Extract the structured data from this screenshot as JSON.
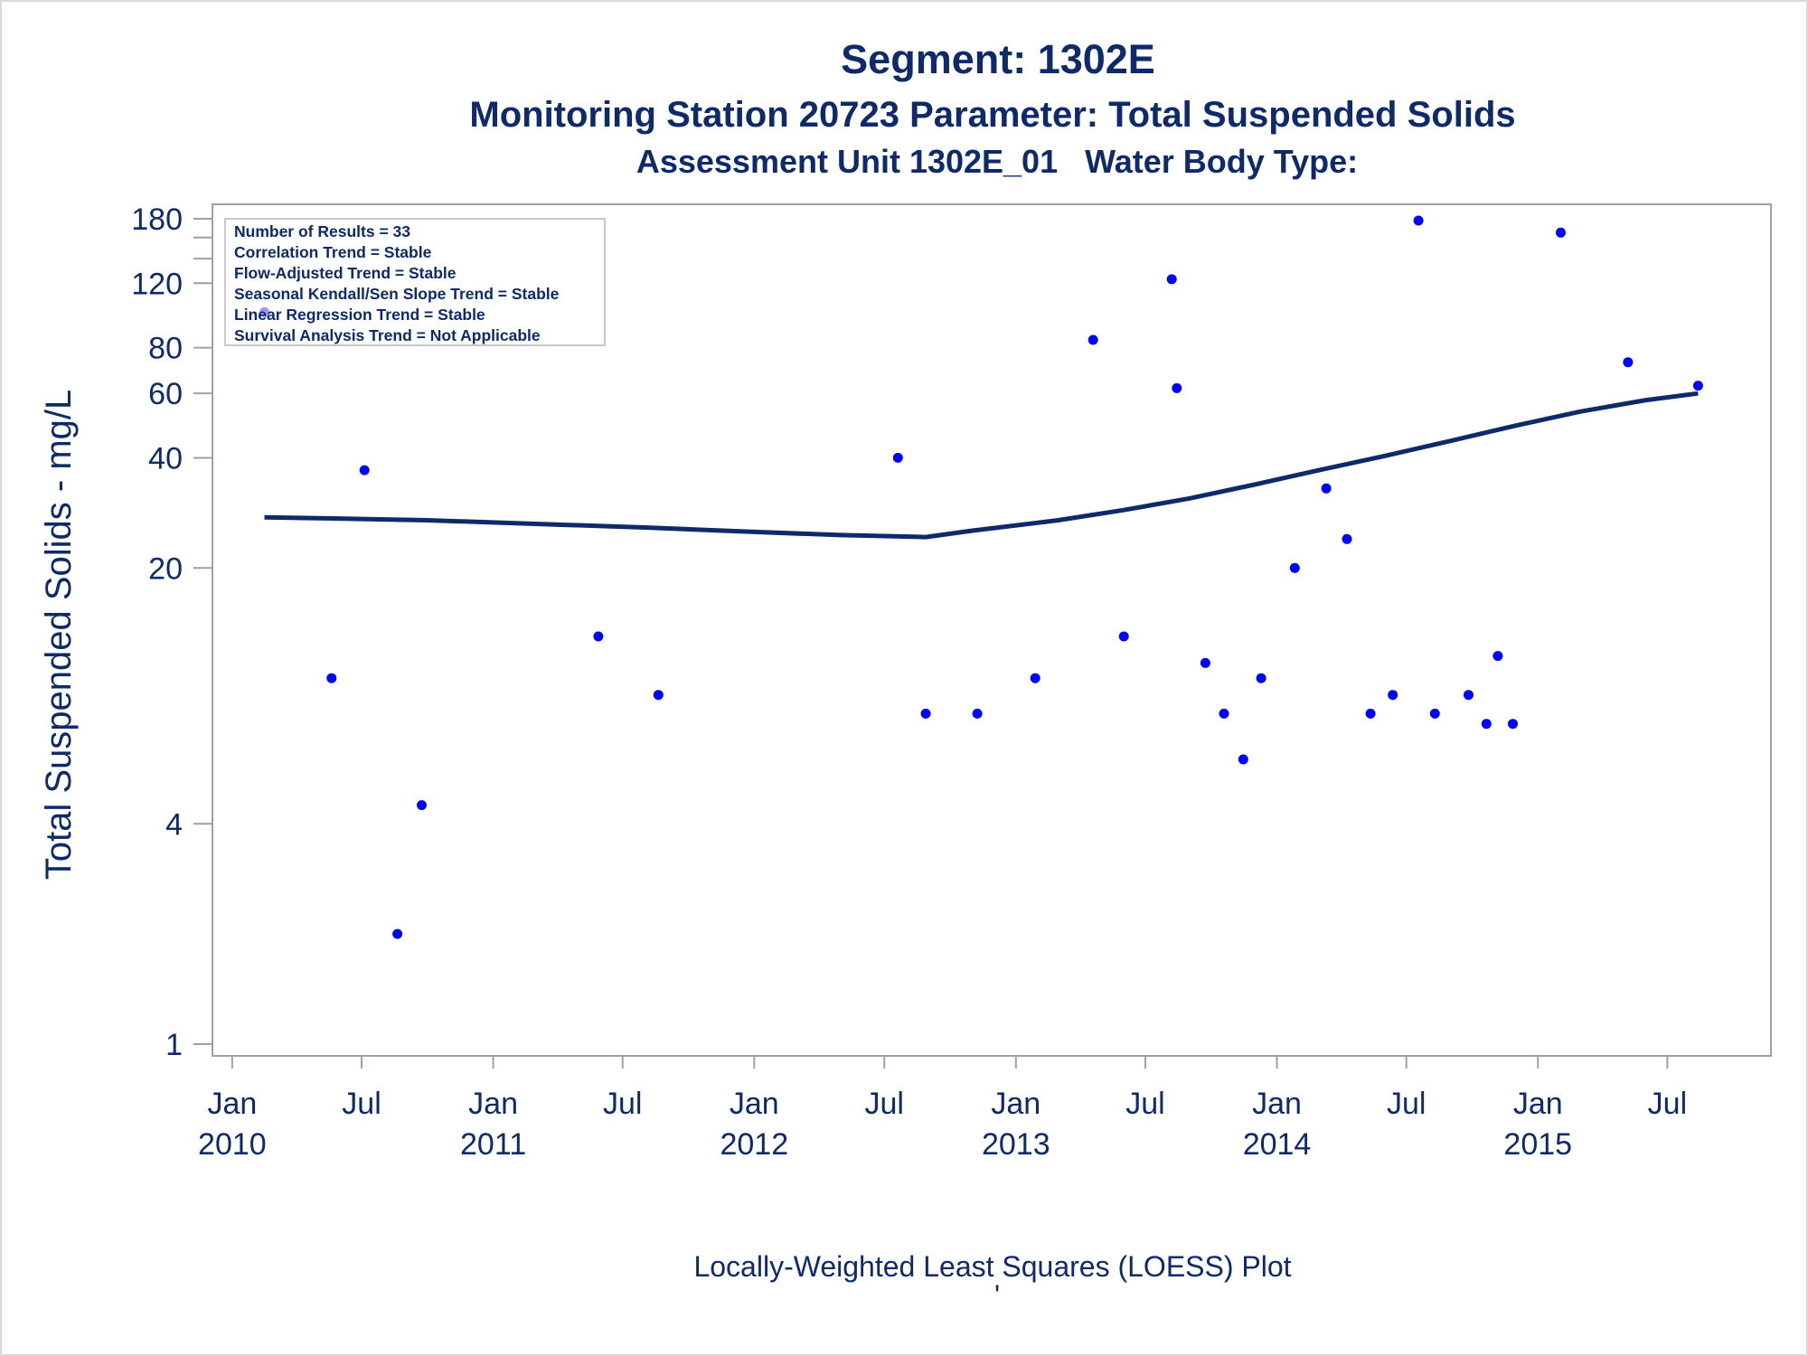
{
  "chart_data": {
    "type": "scatter",
    "title": "Segment: 1302E",
    "subtitle": "Monitoring Station 20723 Parameter: Total Suspended Solids",
    "subtitle2": "Assessment Unit 1302E_01   Water Body Type:",
    "ylabel": "Total Suspended Solids - mg/L",
    "footnote": "Locally-Weighted Least Squares (LOESS) Plot",
    "footnote_mark": "'",
    "y_scale": "log",
    "ylim": [
      1,
      180
    ],
    "y_ticks": [
      {
        "value": 1,
        "label": "1"
      },
      {
        "value": 4,
        "label": "4"
      },
      {
        "value": 20,
        "label": "20"
      },
      {
        "value": 40,
        "label": "40"
      },
      {
        "value": 60,
        "label": "60"
      },
      {
        "value": 80,
        "label": "80"
      },
      {
        "value": 120,
        "label": "120"
      },
      {
        "value": 180,
        "label": "180"
      }
    ],
    "y_minor_ticks": [
      140,
      160
    ],
    "xlim": [
      "2009-12-17",
      "2015-08-15"
    ],
    "x_ticks": [
      {
        "date": "2010-01-01",
        "label": "Jan",
        "year": "2010"
      },
      {
        "date": "2010-07-01",
        "label": "Jul",
        "year": ""
      },
      {
        "date": "2011-01-01",
        "label": "Jan",
        "year": "2011"
      },
      {
        "date": "2011-07-01",
        "label": "Jul",
        "year": ""
      },
      {
        "date": "2012-01-01",
        "label": "Jan",
        "year": "2012"
      },
      {
        "date": "2012-07-01",
        "label": "Jul",
        "year": ""
      },
      {
        "date": "2013-01-01",
        "label": "Jan",
        "year": "2013"
      },
      {
        "date": "2013-07-01",
        "label": "Jul",
        "year": ""
      },
      {
        "date": "2014-01-01",
        "label": "Jan",
        "year": "2014"
      },
      {
        "date": "2014-07-01",
        "label": "Jul",
        "year": ""
      },
      {
        "date": "2015-01-01",
        "label": "Jan",
        "year": "2015"
      },
      {
        "date": "2015-07-01",
        "label": "Jul",
        "year": ""
      }
    ],
    "grid": false,
    "stats_box": [
      "Number of Results = 33",
      "Correlation Trend = Stable",
      "Flow-Adjusted Trend = Stable",
      "Seasonal Kendall/Sen Slope Trend = Stable",
      "Linear Regression Trend = Stable",
      "Survival Analysis Trend = Not Applicable"
    ],
    "stats_box_position": "top-left",
    "colors": {
      "points": "#0000ff",
      "loess": "#0e2a6b",
      "text": "#0e2a6b",
      "axis": "#a0a0a0"
    },
    "points": [
      {
        "x": "2010-02-15",
        "y": 100
      },
      {
        "x": "2010-05-20",
        "y": 10
      },
      {
        "x": "2010-07-05",
        "y": 37
      },
      {
        "x": "2010-08-20",
        "y": 2
      },
      {
        "x": "2010-09-23",
        "y": 4.5
      },
      {
        "x": "2011-05-28",
        "y": 13
      },
      {
        "x": "2011-08-20",
        "y": 9
      },
      {
        "x": "2012-07-20",
        "y": 40
      },
      {
        "x": "2012-08-28",
        "y": 8
      },
      {
        "x": "2012-11-08",
        "y": 8
      },
      {
        "x": "2013-01-28",
        "y": 10
      },
      {
        "x": "2013-04-19",
        "y": 84
      },
      {
        "x": "2013-06-01",
        "y": 13
      },
      {
        "x": "2013-08-07",
        "y": 123
      },
      {
        "x": "2013-08-14",
        "y": 62
      },
      {
        "x": "2013-09-23",
        "y": 11
      },
      {
        "x": "2013-10-19",
        "y": 8
      },
      {
        "x": "2013-11-15",
        "y": 6
      },
      {
        "x": "2013-12-10",
        "y": 10
      },
      {
        "x": "2014-01-26",
        "y": 20
      },
      {
        "x": "2014-03-11",
        "y": 33
      },
      {
        "x": "2014-04-09",
        "y": 24
      },
      {
        "x": "2014-05-12",
        "y": 8
      },
      {
        "x": "2014-06-12",
        "y": 9
      },
      {
        "x": "2014-07-18",
        "y": 178
      },
      {
        "x": "2014-08-10",
        "y": 8
      },
      {
        "x": "2014-09-26",
        "y": 9
      },
      {
        "x": "2014-10-21",
        "y": 7.5
      },
      {
        "x": "2014-11-06",
        "y": 11.5
      },
      {
        "x": "2014-11-27",
        "y": 7.5
      },
      {
        "x": "2015-02-02",
        "y": 165
      },
      {
        "x": "2015-05-07",
        "y": 73
      },
      {
        "x": "2015-08-13",
        "y": 63
      }
    ],
    "loess": [
      {
        "x": "2010-02-15",
        "y": 27.5
      },
      {
        "x": "2010-06-01",
        "y": 27.3
      },
      {
        "x": "2010-10-01",
        "y": 27.0
      },
      {
        "x": "2011-03-01",
        "y": 26.4
      },
      {
        "x": "2011-08-01",
        "y": 25.8
      },
      {
        "x": "2012-01-01",
        "y": 25.1
      },
      {
        "x": "2012-05-01",
        "y": 24.6
      },
      {
        "x": "2012-08-28",
        "y": 24.3
      },
      {
        "x": "2012-11-01",
        "y": 25.3
      },
      {
        "x": "2013-03-01",
        "y": 27.0
      },
      {
        "x": "2013-06-01",
        "y": 28.8
      },
      {
        "x": "2013-09-01",
        "y": 31.0
      },
      {
        "x": "2013-12-01",
        "y": 33.8
      },
      {
        "x": "2014-03-01",
        "y": 37.0
      },
      {
        "x": "2014-06-01",
        "y": 40.5
      },
      {
        "x": "2014-09-01",
        "y": 44.5
      },
      {
        "x": "2014-12-01",
        "y": 49.0
      },
      {
        "x": "2015-03-01",
        "y": 53.5
      },
      {
        "x": "2015-06-01",
        "y": 57.5
      },
      {
        "x": "2015-08-13",
        "y": 60.0
      }
    ]
  }
}
